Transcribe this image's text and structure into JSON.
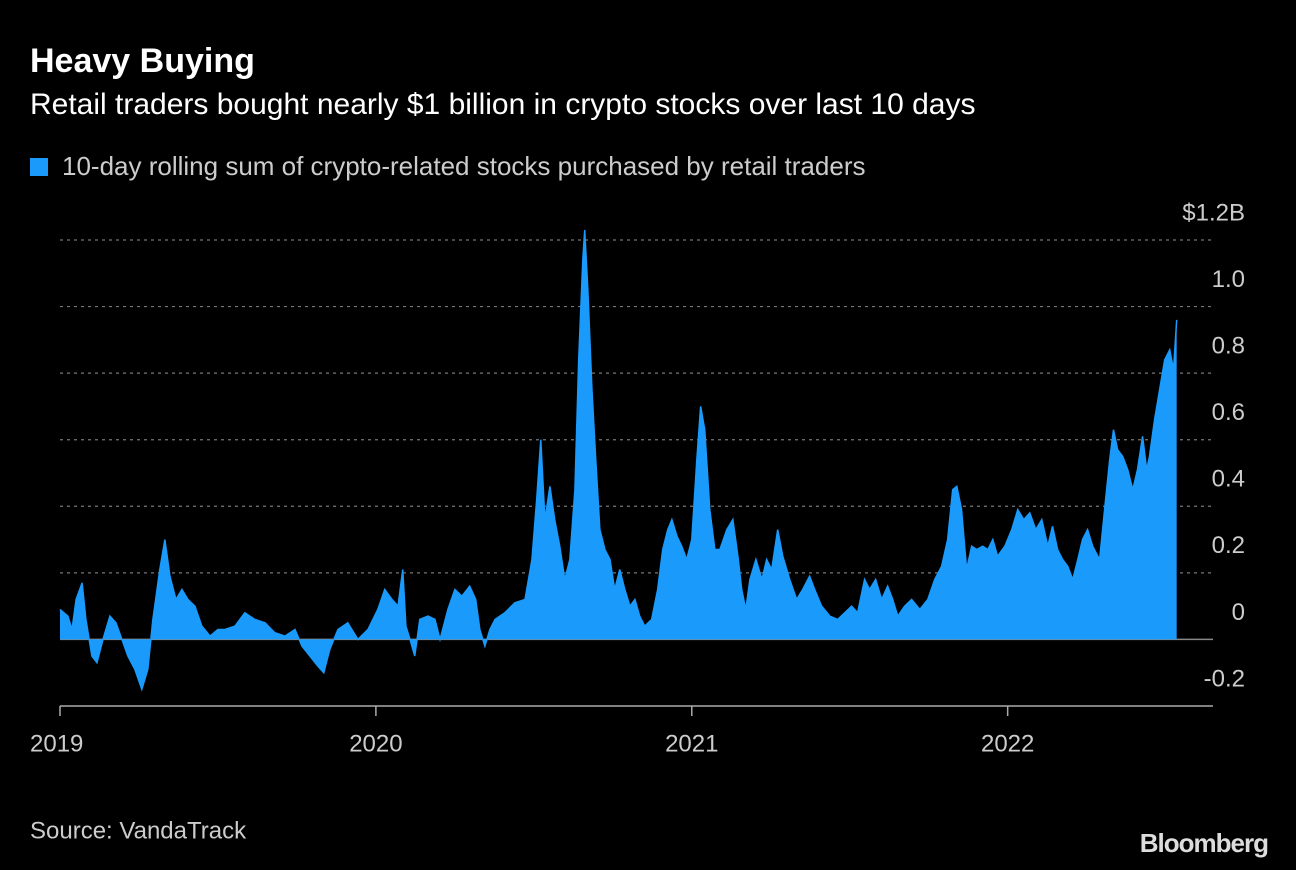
{
  "chart_data": {
    "type": "area",
    "title": "Heavy Buying",
    "subtitle": "Retail traders bought nearly $1 billion in crypto stocks over last 10 days",
    "source": "Source: VandaTrack",
    "brand": "Bloomberg",
    "legend": "top-left",
    "grid": true,
    "xlim": [
      2019,
      2022.65
    ],
    "xticks": [
      2019,
      2020,
      2021,
      2022
    ],
    "ylim": [
      -0.2,
      1.2
    ],
    "yticks": [
      -0.2,
      0,
      0.2,
      0.4,
      0.6,
      0.8,
      {
        "value": 1.0,
        "label": "1.0"
      },
      {
        "value": 1.2,
        "label": "$1.2B"
      }
    ],
    "x": [
      2019.0,
      2019.025,
      2019.038,
      2019.051,
      2019.07,
      2019.082,
      2019.101,
      2019.117,
      2019.136,
      2019.158,
      2019.177,
      2019.196,
      2019.215,
      2019.237,
      2019.259,
      2019.278,
      2019.294,
      2019.316,
      2019.332,
      2019.348,
      2019.367,
      2019.386,
      2019.405,
      2019.427,
      2019.449,
      2019.475,
      2019.5,
      2019.522,
      2019.554,
      2019.585,
      2019.617,
      2019.649,
      2019.68,
      2019.712,
      2019.744,
      2019.766,
      2019.791,
      2019.816,
      2019.835,
      2019.854,
      2019.88,
      2019.911,
      2019.943,
      2019.975,
      2020.006,
      2020.028,
      2020.051,
      2020.07,
      2020.085,
      2020.095,
      2020.108,
      2020.123,
      2020.139,
      2020.165,
      2020.187,
      2020.203,
      2020.228,
      2020.25,
      2020.272,
      2020.297,
      2020.316,
      2020.329,
      2020.345,
      2020.361,
      2020.377,
      2020.408,
      2020.44,
      2020.472,
      2020.494,
      2020.509,
      2020.522,
      2020.535,
      2020.551,
      2020.566,
      2020.582,
      2020.598,
      2020.614,
      2020.63,
      2020.642,
      2020.655,
      2020.661,
      2020.671,
      2020.684,
      2020.696,
      2020.709,
      2020.725,
      2020.741,
      2020.756,
      2020.772,
      2020.788,
      2020.804,
      2020.82,
      2020.835,
      2020.851,
      2020.873,
      2020.892,
      2020.908,
      2020.924,
      2020.937,
      2020.953,
      2020.968,
      2020.984,
      2021.0,
      2021.016,
      2021.028,
      2021.041,
      2021.057,
      2021.073,
      2021.089,
      2021.111,
      2021.13,
      2021.146,
      2021.158,
      2021.171,
      2021.184,
      2021.203,
      2021.222,
      2021.237,
      2021.253,
      2021.272,
      2021.288,
      2021.31,
      2021.332,
      2021.351,
      2021.373,
      2021.389,
      2021.411,
      2021.437,
      2021.462,
      2021.484,
      2021.506,
      2021.525,
      2021.547,
      2021.563,
      2021.582,
      2021.601,
      2021.62,
      2021.636,
      2021.652,
      2021.674,
      2021.696,
      2021.722,
      2021.747,
      2021.769,
      2021.791,
      2021.81,
      2021.826,
      2021.839,
      2021.854,
      2021.87,
      2021.886,
      2021.902,
      2021.921,
      2021.937,
      2021.953,
      2021.968,
      2021.991,
      2022.013,
      2022.032,
      2022.051,
      2022.07,
      2022.089,
      2022.108,
      2022.127,
      2022.142,
      2022.158,
      2022.174,
      2022.19,
      2022.206,
      2022.222,
      2022.237,
      2022.253,
      2022.269,
      2022.291,
      2022.31,
      2022.323,
      2022.335,
      2022.348,
      2022.364,
      2022.38,
      2022.396,
      2022.411,
      2022.427,
      2022.44,
      2022.449,
      2022.465,
      2022.481,
      2022.497,
      2022.513,
      2022.525,
      2022.535
    ],
    "series": [
      {
        "name": "10-day rolling sum of crypto-related stocks purchased by retail traders",
        "color": "#1a9bfc",
        "values": [
          0.09,
          0.07,
          0.03,
          0.12,
          0.17,
          0.06,
          -0.05,
          -0.07,
          0,
          0.07,
          0.05,
          0,
          -0.05,
          -0.09,
          -0.15,
          -0.09,
          0.06,
          0.21,
          0.3,
          0.19,
          0.12,
          0.15,
          0.12,
          0.1,
          0.04,
          0.01,
          0.03,
          0.03,
          0.04,
          0.08,
          0.06,
          0.05,
          0.02,
          0.01,
          0.03,
          -0.02,
          -0.05,
          -0.08,
          -0.1,
          -0.03,
          0.03,
          0.05,
          0.0,
          0.03,
          0.09,
          0.15,
          0.12,
          0.1,
          0.21,
          0.04,
          0,
          -0.05,
          0.06,
          0.07,
          0.06,
          0,
          0.09,
          0.15,
          0.13,
          0.16,
          0.12,
          0.03,
          -0.02,
          0.03,
          0.06,
          0.08,
          0.11,
          0.12,
          0.24,
          0.42,
          0.6,
          0.36,
          0.46,
          0.36,
          0.28,
          0.18,
          0.24,
          0.45,
          0.84,
          1.14,
          1.23,
          1.05,
          0.75,
          0.54,
          0.33,
          0.27,
          0.24,
          0.15,
          0.21,
          0.15,
          0.1,
          0.12,
          0.07,
          0.04,
          0.06,
          0.15,
          0.27,
          0.33,
          0.36,
          0.31,
          0.28,
          0.24,
          0.3,
          0.54,
          0.7,
          0.63,
          0.39,
          0.27,
          0.27,
          0.33,
          0.36,
          0.25,
          0.15,
          0.09,
          0.18,
          0.24,
          0.18,
          0.24,
          0.21,
          0.33,
          0.25,
          0.18,
          0.12,
          0.15,
          0.19,
          0.15,
          0.1,
          0.07,
          0.06,
          0.08,
          0.1,
          0.08,
          0.18,
          0.15,
          0.18,
          0.12,
          0.16,
          0.12,
          0.07,
          0.1,
          0.12,
          0.09,
          0.12,
          0.18,
          0.22,
          0.3,
          0.45,
          0.46,
          0.39,
          0.21,
          0.28,
          0.27,
          0.28,
          0.27,
          0.3,
          0.25,
          0.28,
          0.33,
          0.39,
          0.36,
          0.38,
          0.33,
          0.36,
          0.28,
          0.34,
          0.27,
          0.24,
          0.22,
          0.18,
          0.24,
          0.3,
          0.33,
          0.28,
          0.24,
          0.42,
          0.54,
          0.63,
          0.57,
          0.55,
          0.51,
          0.45,
          0.51,
          0.61,
          0.51,
          0.55,
          0.66,
          0.75,
          0.84,
          0.87,
          0.81,
          0.96
        ]
      }
    ]
  }
}
